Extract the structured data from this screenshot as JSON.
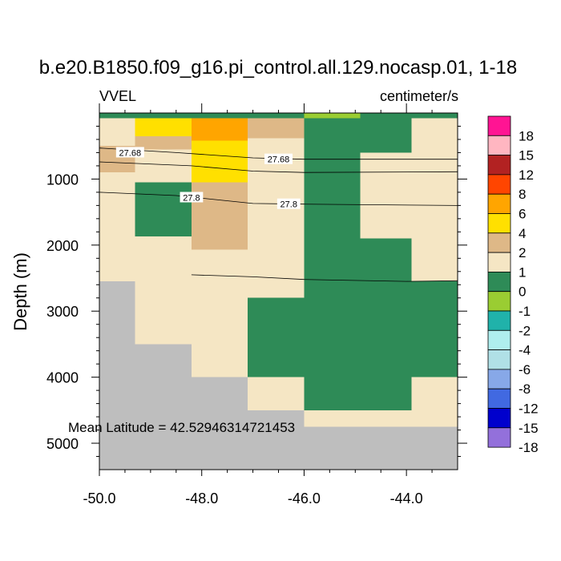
{
  "chart_data": {
    "type": "heatmap",
    "title": "b.e20.B1850.f09_g16.pi_control.all.129.nocasp.01, 1-18",
    "left_label": "VVEL",
    "right_label": "centimeter/s",
    "xlabel": "",
    "ylabel": "Depth (m)",
    "xlim": [
      -50.0,
      -43.0
    ],
    "ylim_depth_m": [
      0,
      5400
    ],
    "x_ticks": [
      -50.0,
      -48.0,
      -46.0,
      -44.0
    ],
    "x_tick_labels": [
      "-50.0",
      "-48.0",
      "-46.0",
      "-44.0"
    ],
    "y_ticks": [
      1000,
      2000,
      3000,
      4000,
      5000
    ],
    "y_tick_labels": [
      "1000",
      "2000",
      "3000",
      "4000",
      "5000"
    ],
    "annotation": "Mean Latitude = 42.52946314721453",
    "colorbar": {
      "labels": [
        "18",
        "15",
        "12",
        "8",
        "6",
        "4",
        "2",
        "1",
        "0",
        "-1",
        "-2",
        "-4",
        "-6",
        "-8",
        "-12",
        "-15",
        "-18"
      ],
      "colors": [
        "#ff1493",
        "#ffb6c1",
        "#b22222",
        "#ff4500",
        "#ffa500",
        "#ffe000",
        "#deb887",
        "#f5e6c4",
        "#2e8b57",
        "#9acd32",
        "#20b2aa",
        "#afeeee",
        "#b0e0e6",
        "#87a8e8",
        "#4169e1",
        "#0000cd",
        "#9370db"
      ]
    },
    "missing_color": "#bebebe",
    "cells": [
      {
        "x0": -50.0,
        "x1": -49.3,
        "d0": 0,
        "d1": 80,
        "value": 0
      },
      {
        "x0": -49.3,
        "x1": -48.2,
        "d0": 0,
        "d1": 80,
        "value": 0
      },
      {
        "x0": -48.2,
        "x1": -47.1,
        "d0": 0,
        "d1": 80,
        "value": 0
      },
      {
        "x0": -47.1,
        "x1": -46.0,
        "d0": 0,
        "d1": 80,
        "value": 0
      },
      {
        "x0": -46.0,
        "x1": -44.9,
        "d0": 0,
        "d1": 80,
        "value": -1.5
      },
      {
        "x0": -44.9,
        "x1": -43.0,
        "d0": 0,
        "d1": 80,
        "value": -0.5
      },
      {
        "x0": -50.0,
        "x1": -49.3,
        "d0": 80,
        "d1": 500,
        "value": 0.5
      },
      {
        "x0": -49.3,
        "x1": -48.2,
        "d0": 80,
        "d1": 350,
        "value": 3
      },
      {
        "x0": -49.3,
        "x1": -48.2,
        "d0": 350,
        "d1": 550,
        "value": 1.5
      },
      {
        "x0": -49.3,
        "x1": -48.2,
        "d0": 550,
        "d1": 1050,
        "value": 0.5
      },
      {
        "x0": -48.2,
        "x1": -47.1,
        "d0": 80,
        "d1": 420,
        "value": 5
      },
      {
        "x0": -48.2,
        "x1": -47.1,
        "d0": 420,
        "d1": 1050,
        "value": 3
      },
      {
        "x0": -47.1,
        "x1": -46.0,
        "d0": 80,
        "d1": 380,
        "value": 1.5
      },
      {
        "x0": -47.1,
        "x1": -46.0,
        "d0": 380,
        "d1": 2800,
        "value": 0.5
      },
      {
        "x0": -46.0,
        "x1": -44.9,
        "d0": 80,
        "d1": 4500,
        "value": -0.5
      },
      {
        "x0": -44.9,
        "x1": -43.9,
        "d0": 80,
        "d1": 600,
        "value": -0.5
      },
      {
        "x0": -43.9,
        "x1": -43.0,
        "d0": 80,
        "d1": 2550,
        "value": 0.5
      },
      {
        "x0": -44.9,
        "x1": -43.9,
        "d0": 600,
        "d1": 1900,
        "value": 0.5
      },
      {
        "x0": -44.9,
        "x1": -43.9,
        "d0": 1900,
        "d1": 4500,
        "value": -0.5
      },
      {
        "x0": -50.0,
        "x1": -49.3,
        "d0": 500,
        "d1": 900,
        "value": 1.5
      },
      {
        "x0": -50.0,
        "x1": -49.3,
        "d0": 900,
        "d1": 2550,
        "value": 0.5
      },
      {
        "x0": -49.3,
        "x1": -48.2,
        "d0": 1050,
        "d1": 1870,
        "value": -0.5
      },
      {
        "x0": -49.3,
        "x1": -48.2,
        "d0": 1870,
        "d1": 3500,
        "value": 0.5
      },
      {
        "x0": -48.2,
        "x1": -47.1,
        "d0": 1050,
        "d1": 2070,
        "value": 1.5
      },
      {
        "x0": -48.2,
        "x1": -47.1,
        "d0": 2070,
        "d1": 4000,
        "value": 0.5
      },
      {
        "x0": -47.1,
        "x1": -46.0,
        "d0": 2800,
        "d1": 4000,
        "value": -0.5
      },
      {
        "x0": -47.1,
        "x1": -46.0,
        "d0": 4000,
        "d1": 4500,
        "value": 0.5
      },
      {
        "x0": -46.0,
        "x1": -43.9,
        "d0": 4500,
        "d1": 4750,
        "value": 0.5
      },
      {
        "x0": -43.9,
        "x1": -43.0,
        "d0": 2550,
        "d1": 4000,
        "value": -0.5
      },
      {
        "x0": -43.9,
        "x1": -43.0,
        "d0": 4000,
        "d1": 4750,
        "value": 0.5
      },
      {
        "x0": -50.0,
        "x1": -49.3,
        "d0": 2550,
        "d1": 5400,
        "value": null
      },
      {
        "x0": -49.3,
        "x1": -48.2,
        "d0": 3500,
        "d1": 5400,
        "value": null
      },
      {
        "x0": -48.2,
        "x1": -47.1,
        "d0": 4000,
        "d1": 5400,
        "value": null
      },
      {
        "x0": -47.1,
        "x1": -46.0,
        "d0": 4500,
        "d1": 5400,
        "value": null
      },
      {
        "x0": -46.0,
        "x1": -43.0,
        "d0": 4750,
        "d1": 5400,
        "value": null
      }
    ],
    "contours": [
      {
        "label": "27.68",
        "points": [
          [
            -50.0,
            530
          ],
          [
            -48.5,
            600
          ],
          [
            -47.0,
            680
          ],
          [
            -46.0,
            700
          ],
          [
            -43.0,
            700
          ]
        ],
        "label_positions": [
          [
            -49.4,
            600
          ],
          [
            -46.5,
            700
          ]
        ]
      },
      {
        "label": "",
        "points": [
          [
            -50.0,
            740
          ],
          [
            -48.2,
            800
          ],
          [
            -47.0,
            880
          ],
          [
            -46.0,
            900
          ],
          [
            -43.0,
            890
          ]
        ],
        "label_positions": []
      },
      {
        "label": "27.8",
        "points": [
          [
            -50.0,
            1200
          ],
          [
            -48.5,
            1250
          ],
          [
            -47.0,
            1370
          ],
          [
            -46.0,
            1380
          ],
          [
            -43.0,
            1400
          ]
        ],
        "label_positions": [
          [
            -48.2,
            1280
          ],
          [
            -46.3,
            1380
          ]
        ]
      },
      {
        "label": "",
        "points": [
          [
            -48.2,
            2450
          ],
          [
            -47.0,
            2480
          ],
          [
            -46.0,
            2520
          ],
          [
            -44.0,
            2550
          ],
          [
            -43.0,
            2540
          ]
        ],
        "label_positions": []
      }
    ]
  }
}
